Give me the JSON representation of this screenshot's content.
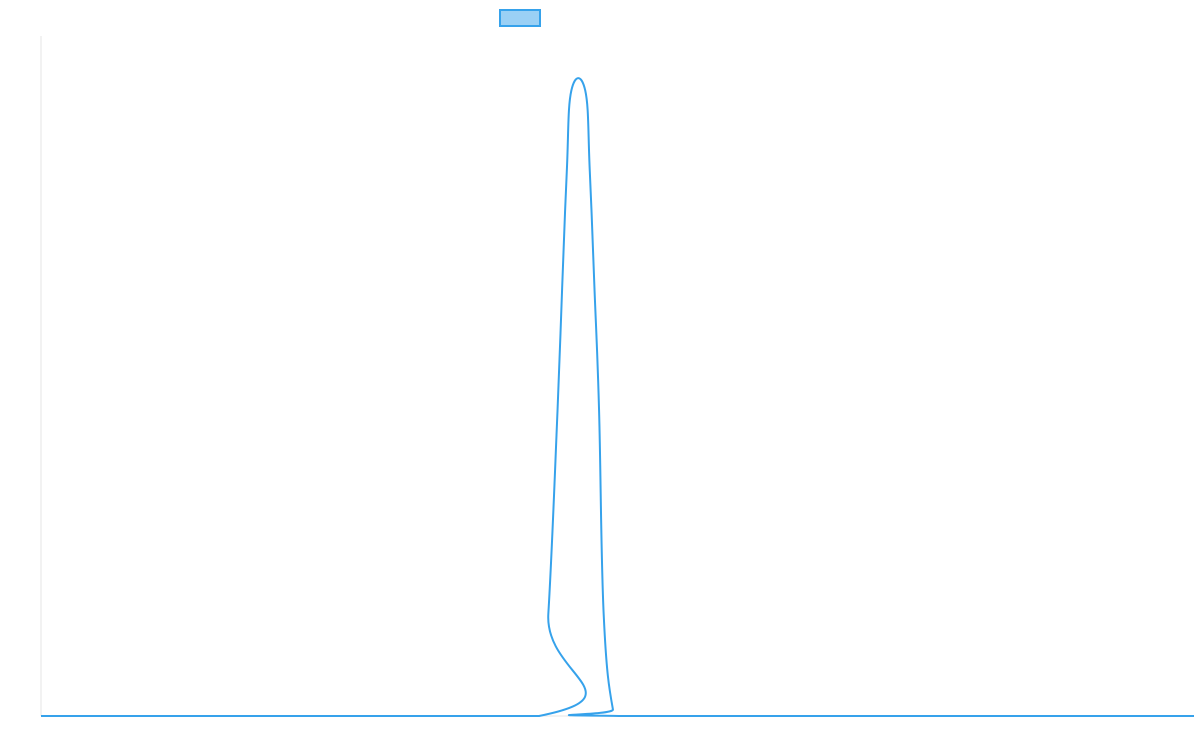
{
  "chart_data": {
    "type": "line",
    "title": "",
    "xlabel": "",
    "ylabel": "",
    "legend": {
      "placement": "top-center",
      "entries": [
        {
          "label": "",
          "color": "#36a2eb",
          "fill": "#9ad0f5"
        }
      ]
    },
    "grid": false,
    "xlim": [
      0,
      100
    ],
    "ylim": [
      0,
      1
    ],
    "series": [
      {
        "color": "#36a2eb",
        "x": [
          0,
          43.2,
          44.0,
          44.8,
          45.2,
          45.6,
          46.0,
          47.2,
          47.6,
          48.0,
          48.4,
          48.8,
          49.6,
          50.4,
          100
        ],
        "values": [
          0,
          0,
          0.15,
          0.45,
          0.63,
          0.8,
          0.92,
          0.92,
          0.8,
          0.63,
          0.45,
          0.15,
          0.01,
          0,
          0
        ]
      }
    ]
  }
}
